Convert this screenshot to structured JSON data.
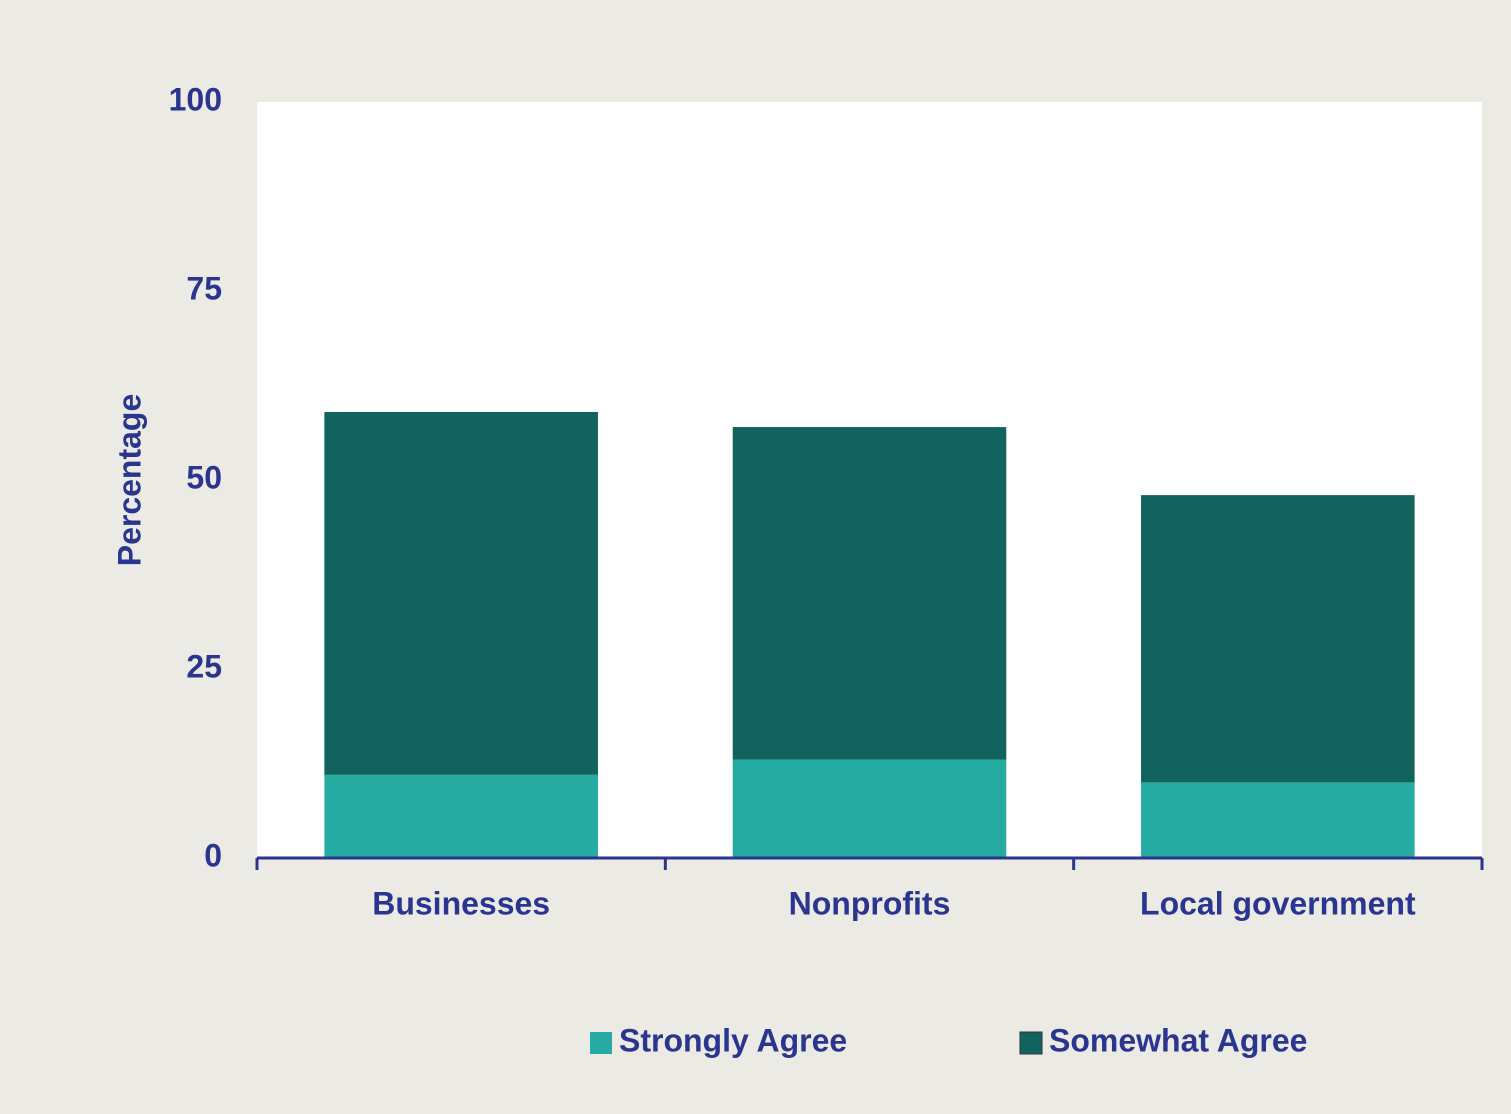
{
  "chart_data": {
    "type": "bar",
    "stacked": true,
    "ylabel": "Percentage",
    "categories": [
      "Businesses",
      "Nonprofits",
      "Local government"
    ],
    "series": [
      {
        "name": "Strongly Agree",
        "color": "#26aba2",
        "values": [
          11,
          13,
          10
        ]
      },
      {
        "name": "Somewhat Agree",
        "color": "#12635e",
        "values": [
          48,
          44,
          38
        ]
      }
    ],
    "ylim": [
      0,
      100
    ],
    "yticks": [
      0,
      25,
      50,
      75,
      100
    ],
    "grid": false
  }
}
